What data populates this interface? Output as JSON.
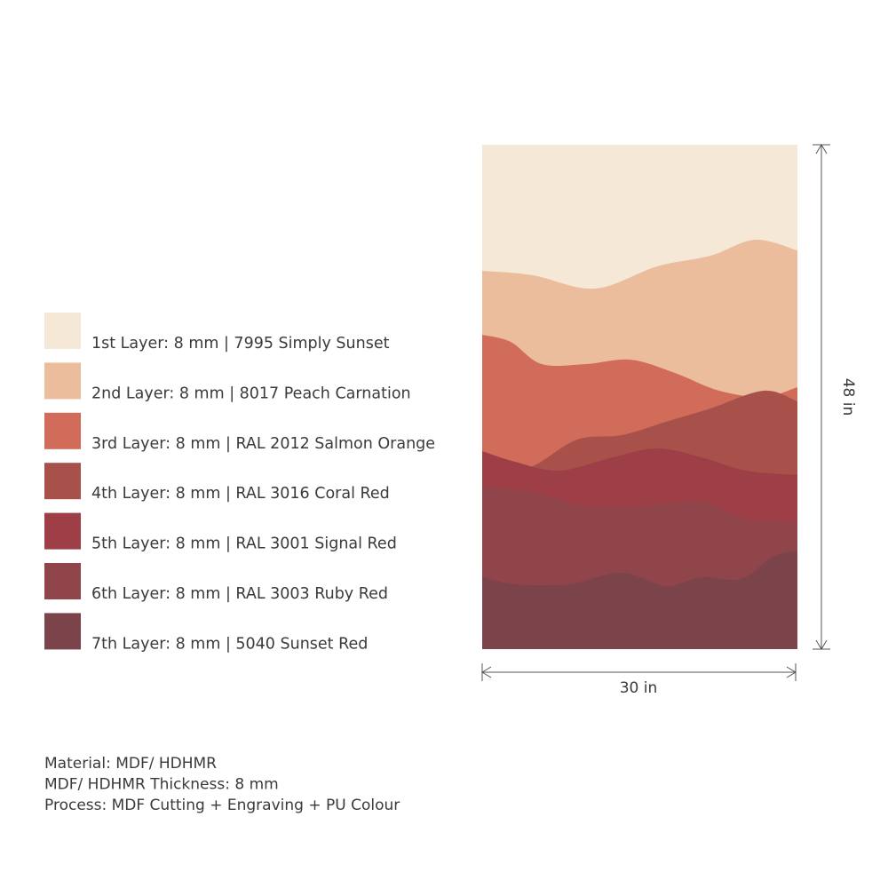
{
  "layers": [
    {
      "label": "1st Layer: 8 mm | 7995 Simply Sunset",
      "color": "#f5e8d6"
    },
    {
      "label": "2nd Layer: 8 mm | 8017 Peach Carnation",
      "color": "#ebbd9c"
    },
    {
      "label": "3rd Layer: 8 mm | RAL 2012 Salmon Orange",
      "color": "#d16b5a"
    },
    {
      "label": "4th Layer: 8 mm | RAL 3016 Coral Red",
      "color": "#a8504a"
    },
    {
      "label": "5th Layer: 8 mm | RAL 3001 Signal Red",
      "color": "#9e3f47"
    },
    {
      "label": "6th Layer: 8 mm  | RAL 3003 Ruby Red",
      "color": "#8f4549"
    },
    {
      "label": "7th Layer: 8 mm  |  5040 Sunset Red",
      "color": "#7b434a"
    }
  ],
  "dimensions": {
    "width": "30 in",
    "height": "48 in"
  },
  "specs": [
    "Material: MDF/ HDHMR",
    "MDF/ HDHMR Thickness: 8 mm",
    "Process: MDF Cutting + Engraving + PU Colour"
  ]
}
